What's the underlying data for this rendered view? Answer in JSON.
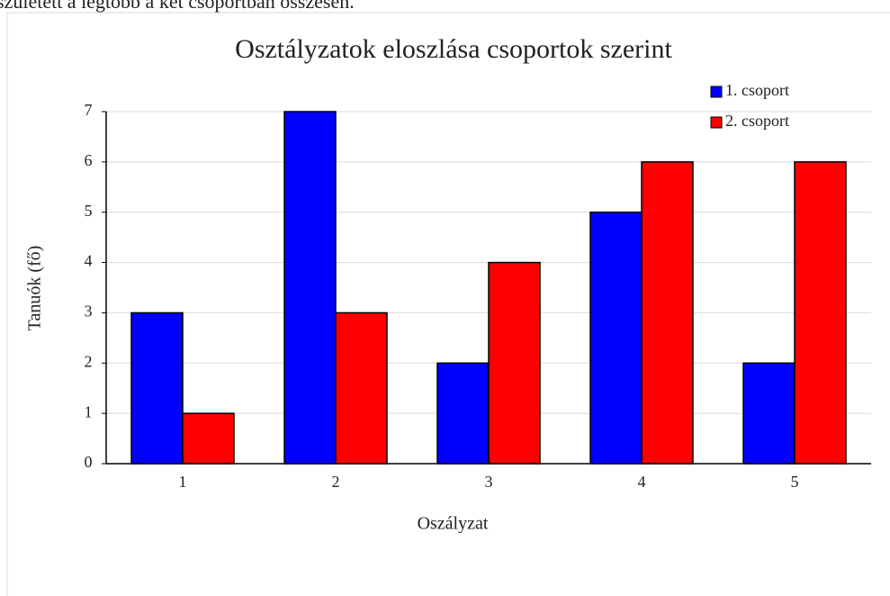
{
  "page_text": "született a legtöbb a két csoportban összesen.",
  "chart_data": {
    "type": "bar",
    "title": "Osztályzatok eloszlása csoportok szerint",
    "x_label": "Oszályzat",
    "y_label": "Tanuók (fő)",
    "categories": [
      "1",
      "2",
      "3",
      "4",
      "5"
    ],
    "series": [
      {
        "name": "1. csoport",
        "color": "#0000ff",
        "values": [
          3,
          7,
          2,
          5,
          2
        ]
      },
      {
        "name": "2. csoport",
        "color": "#ff0000",
        "values": [
          1,
          3,
          4,
          6,
          6
        ]
      }
    ],
    "ylim": [
      0,
      7
    ],
    "yticks": [
      0,
      1,
      2,
      3,
      4,
      5,
      6,
      7
    ],
    "grid": true,
    "legend": "top-right"
  }
}
